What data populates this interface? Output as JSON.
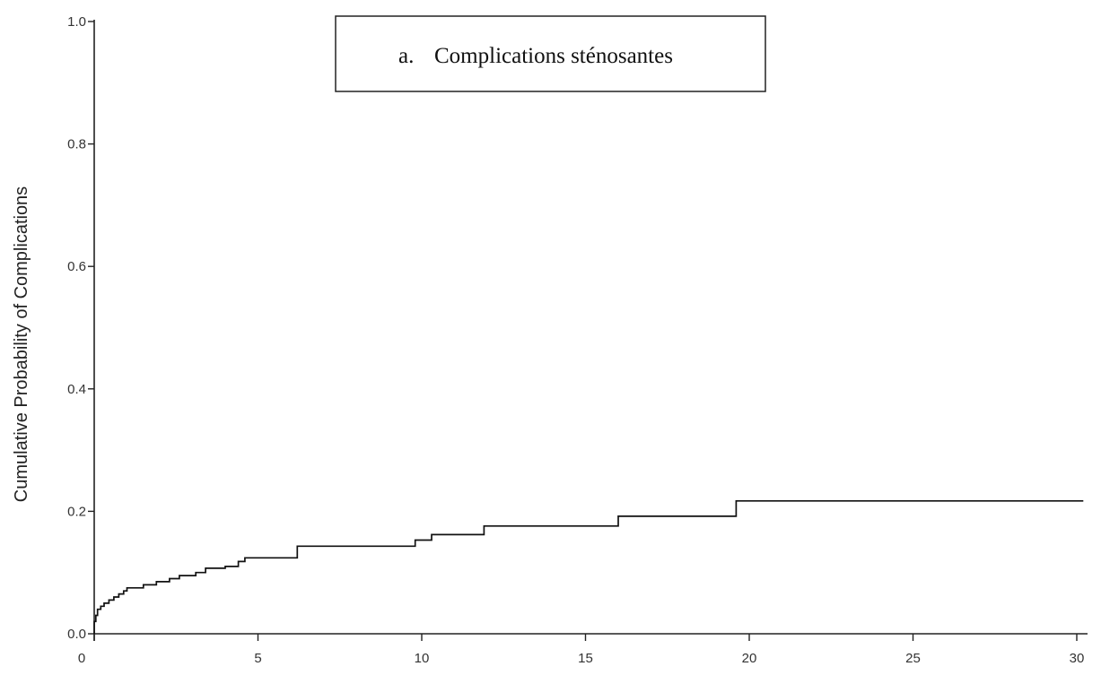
{
  "chart_data": {
    "type": "line",
    "title": "",
    "xlabel": "",
    "ylabel": "Cumulative Probability  of Complications",
    "annotation": {
      "marker": "a.",
      "text": "Complications sténosantes"
    },
    "xlim": [
      0,
      30
    ],
    "ylim": [
      0,
      1
    ],
    "xticks": [
      {
        "value": 0,
        "label": "0"
      },
      {
        "value": 5,
        "label": "5"
      },
      {
        "value": 10,
        "label": "10"
      },
      {
        "value": 15,
        "label": "15"
      },
      {
        "value": 20,
        "label": "20"
      },
      {
        "value": 25,
        "label": "25"
      },
      {
        "value": 30,
        "label": "30"
      }
    ],
    "yticks": [
      {
        "value": 0.0,
        "label": "0.0"
      },
      {
        "value": 0.2,
        "label": "0.2"
      },
      {
        "value": 0.4,
        "label": "0.4"
      },
      {
        "value": 0.6,
        "label": "0.6"
      },
      {
        "value": 0.8,
        "label": "0.8"
      },
      {
        "value": 1.0,
        "label": "1.0"
      }
    ],
    "grid": false,
    "series": [
      {
        "step": true,
        "x": [
          0,
          0.05,
          0.1,
          0.2,
          0.3,
          0.45,
          0.6,
          0.75,
          0.9,
          1.0,
          1.5,
          1.9,
          2.3,
          2.6,
          3.1,
          3.4,
          4.0,
          4.4,
          4.6,
          6.2,
          9.8,
          10.3,
          11.9,
          16.0,
          19.6,
          30.2
        ],
        "y": [
          0.02,
          0.03,
          0.04,
          0.045,
          0.05,
          0.055,
          0.06,
          0.065,
          0.07,
          0.075,
          0.08,
          0.085,
          0.09,
          0.095,
          0.1,
          0.107,
          0.11,
          0.118,
          0.124,
          0.143,
          0.153,
          0.162,
          0.176,
          0.192,
          0.217,
          0.217
        ]
      }
    ]
  },
  "colors": {
    "axis": "#222222",
    "series": "#111111",
    "background": "#ffffff"
  }
}
